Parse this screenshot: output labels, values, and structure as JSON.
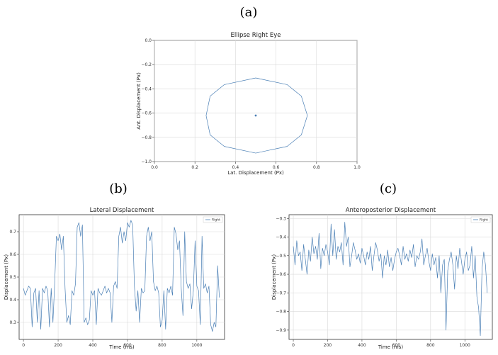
{
  "panels": [
    {
      "label": "(a)"
    },
    {
      "label": "(b)"
    },
    {
      "label": "(c)"
    }
  ],
  "chart_data": [
    {
      "type": "line",
      "title": "Ellipse Right Eye",
      "xlabel": "Lat. Displacement (Px)",
      "ylabel": "Ant. Displacement (Px)",
      "xlim": [
        0.0,
        1.0
      ],
      "ylim": [
        -1.0,
        0.0
      ],
      "xticks": [
        0.0,
        0.2,
        0.4,
        0.6,
        0.8,
        1.0
      ],
      "xtick_labels": [
        "0.0",
        "0.2",
        "0.4",
        "0.6",
        "0.8",
        "1.0"
      ],
      "yticks": [
        0.0,
        -0.2,
        -0.4,
        -0.6,
        -0.8,
        -1.0
      ],
      "ytick_labels": [
        "0.0",
        "−0.2",
        "−0.4",
        "−0.6",
        "−0.8",
        "−1.0"
      ],
      "grid": true,
      "color": "#4a7fb5",
      "series": [
        {
          "x": [
            0.5,
            0.655,
            0.725,
            0.755,
            0.725,
            0.655,
            0.5,
            0.345,
            0.275,
            0.255,
            0.275,
            0.345,
            0.5
          ],
          "y": [
            -0.31,
            -0.365,
            -0.46,
            -0.62,
            -0.78,
            -0.875,
            -0.93,
            -0.875,
            -0.78,
            -0.62,
            -0.46,
            -0.365,
            -0.31
          ]
        }
      ],
      "center": {
        "x": 0.5,
        "y": -0.62
      }
    },
    {
      "type": "line",
      "title": "Lateral Displacement",
      "xlabel": "Time (ms)",
      "ylabel": "Displacement (Px)",
      "xlim": [
        -25,
        1160
      ],
      "ylim": [
        0.225,
        0.775
      ],
      "xticks": [
        0,
        200,
        400,
        600,
        800,
        1000
      ],
      "xtick_labels": [
        "0",
        "200",
        "400",
        "600",
        "800",
        "1000"
      ],
      "yticks": [
        0.3,
        0.4,
        0.5,
        0.6,
        0.7
      ],
      "ytick_labels": [
        "0.3",
        "0.4",
        "0.5",
        "0.6",
        "0.7"
      ],
      "grid": true,
      "legend": {
        "position": "top-right",
        "entries": [
          "Right"
        ]
      },
      "color": "#4a7fb5",
      "series": [
        {
          "name": "Right",
          "x": [
            0,
            10,
            20,
            30,
            40,
            50,
            60,
            70,
            80,
            90,
            100,
            110,
            120,
            130,
            140,
            150,
            160,
            170,
            180,
            190,
            200,
            210,
            220,
            230,
            240,
            250,
            260,
            270,
            280,
            290,
            300,
            310,
            320,
            330,
            340,
            350,
            360,
            370,
            380,
            390,
            400,
            410,
            420,
            430,
            440,
            450,
            460,
            470,
            480,
            490,
            500,
            510,
            520,
            530,
            540,
            550,
            560,
            570,
            580,
            590,
            600,
            610,
            620,
            630,
            640,
            650,
            660,
            670,
            680,
            690,
            700,
            710,
            720,
            730,
            740,
            750,
            760,
            770,
            780,
            790,
            800,
            810,
            820,
            830,
            840,
            850,
            860,
            870,
            880,
            890,
            900,
            910,
            920,
            930,
            940,
            950,
            960,
            970,
            980,
            990,
            1000,
            1010,
            1020,
            1030,
            1040,
            1050,
            1060,
            1070,
            1080,
            1090,
            1100,
            1110,
            1120,
            1130
          ],
          "y": [
            0.45,
            0.42,
            0.44,
            0.46,
            0.45,
            0.28,
            0.43,
            0.45,
            0.3,
            0.44,
            0.27,
            0.45,
            0.43,
            0.46,
            0.44,
            0.28,
            0.45,
            0.3,
            0.47,
            0.68,
            0.66,
            0.69,
            0.62,
            0.68,
            0.45,
            0.3,
            0.33,
            0.29,
            0.44,
            0.42,
            0.47,
            0.72,
            0.74,
            0.68,
            0.73,
            0.3,
            0.32,
            0.29,
            0.31,
            0.44,
            0.42,
            0.44,
            0.29,
            0.45,
            0.43,
            0.42,
            0.44,
            0.46,
            0.43,
            0.45,
            0.43,
            0.3,
            0.46,
            0.48,
            0.45,
            0.68,
            0.72,
            0.65,
            0.7,
            0.66,
            0.74,
            0.72,
            0.75,
            0.73,
            0.46,
            0.35,
            0.44,
            0.3,
            0.45,
            0.43,
            0.44,
            0.68,
            0.72,
            0.66,
            0.7,
            0.48,
            0.44,
            0.46,
            0.43,
            0.28,
            0.31,
            0.44,
            0.27,
            0.45,
            0.43,
            0.46,
            0.42,
            0.72,
            0.69,
            0.62,
            0.66,
            0.45,
            0.33,
            0.7,
            0.48,
            0.45,
            0.47,
            0.36,
            0.44,
            0.66,
            0.46,
            0.44,
            0.29,
            0.68,
            0.45,
            0.47,
            0.43,
            0.46,
            0.29,
            0.26,
            0.3,
            0.28,
            0.55,
            0.41
          ]
        }
      ]
    },
    {
      "type": "line",
      "title": "Anteroposterior Displacement",
      "xlabel": "Time (ms)",
      "ylabel": "Displacement (Px)",
      "xlim": [
        -25,
        1160
      ],
      "ylim": [
        -0.95,
        -0.28
      ],
      "xticks": [
        0,
        200,
        400,
        600,
        800,
        1000
      ],
      "xtick_labels": [
        "0",
        "200",
        "400",
        "600",
        "800",
        "1000"
      ],
      "yticks": [
        -0.3,
        -0.4,
        -0.5,
        -0.6,
        -0.7,
        -0.8,
        -0.9
      ],
      "ytick_labels": [
        "−0.3",
        "−0.4",
        "−0.5",
        "−0.6",
        "−0.7",
        "−0.8",
        "−0.9"
      ],
      "grid": true,
      "legend": {
        "position": "top-right",
        "entries": [
          "Right"
        ]
      },
      "color": "#4a7fb5",
      "series": [
        {
          "name": "Right",
          "x": [
            0,
            10,
            20,
            30,
            40,
            50,
            60,
            70,
            80,
            90,
            100,
            110,
            120,
            130,
            140,
            150,
            160,
            170,
            180,
            190,
            200,
            210,
            220,
            230,
            240,
            250,
            260,
            270,
            280,
            290,
            300,
            310,
            320,
            330,
            340,
            350,
            360,
            370,
            380,
            390,
            400,
            410,
            420,
            430,
            440,
            450,
            460,
            470,
            480,
            490,
            500,
            510,
            520,
            530,
            540,
            550,
            560,
            570,
            580,
            590,
            600,
            610,
            620,
            630,
            640,
            650,
            660,
            670,
            680,
            690,
            700,
            710,
            720,
            730,
            740,
            750,
            760,
            770,
            780,
            790,
            800,
            810,
            820,
            830,
            840,
            850,
            860,
            870,
            880,
            890,
            900,
            910,
            920,
            930,
            940,
            950,
            960,
            970,
            980,
            990,
            1000,
            1010,
            1020,
            1030,
            1040,
            1050,
            1060,
            1070,
            1080,
            1090,
            1100,
            1110,
            1120,
            1130
          ],
          "y": [
            -0.45,
            -0.55,
            -0.42,
            -0.5,
            -0.48,
            -0.58,
            -0.44,
            -0.52,
            -0.6,
            -0.47,
            -0.53,
            -0.4,
            -0.49,
            -0.45,
            -0.52,
            -0.38,
            -0.57,
            -0.46,
            -0.5,
            -0.44,
            -0.48,
            -0.55,
            -0.33,
            -0.5,
            -0.36,
            -0.52,
            -0.45,
            -0.48,
            -0.43,
            -0.55,
            -0.32,
            -0.45,
            -0.4,
            -0.56,
            -0.5,
            -0.43,
            -0.47,
            -0.52,
            -0.49,
            -0.54,
            -0.46,
            -0.5,
            -0.55,
            -0.48,
            -0.52,
            -0.45,
            -0.58,
            -0.5,
            -0.43,
            -0.47,
            -0.53,
            -0.49,
            -0.62,
            -0.5,
            -0.55,
            -0.47,
            -0.56,
            -0.51,
            -0.58,
            -0.52,
            -0.48,
            -0.46,
            -0.5,
            -0.55,
            -0.45,
            -0.52,
            -0.49,
            -0.53,
            -0.47,
            -0.51,
            -0.44,
            -0.56,
            -0.5,
            -0.52,
            -0.48,
            -0.41,
            -0.55,
            -0.5,
            -0.46,
            -0.53,
            -0.58,
            -0.49,
            -0.55,
            -0.51,
            -0.62,
            -0.5,
            -0.7,
            -0.55,
            -0.52,
            -0.9,
            -0.58,
            -0.52,
            -0.48,
            -0.55,
            -0.68,
            -0.5,
            -0.57,
            -0.46,
            -0.53,
            -0.6,
            -0.52,
            -0.48,
            -0.58,
            -0.55,
            -0.45,
            -0.62,
            -0.5,
            -0.72,
            -0.78,
            -0.93,
            -0.57,
            -0.48,
            -0.55,
            -0.7
          ]
        }
      ]
    }
  ]
}
